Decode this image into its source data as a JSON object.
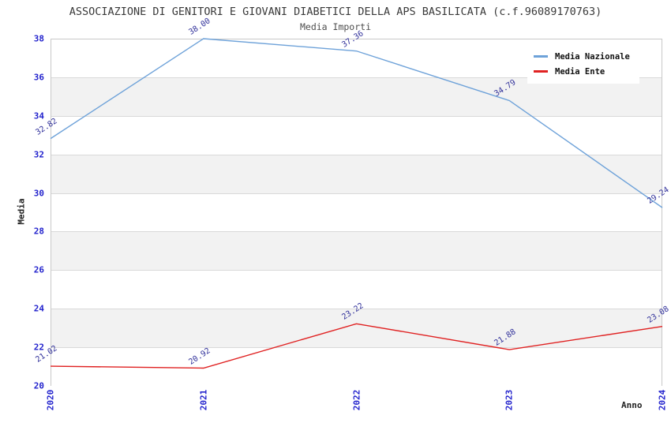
{
  "chart_data": {
    "type": "line",
    "title": "ASSOCIAZIONE DI GENITORI E GIOVANI DIABETICI DELLA APS BASILICATA (c.f.96089170763)",
    "subtitle": "Media Importi",
    "xlabel": "Anno",
    "ylabel": "Media",
    "x": [
      2020,
      2021,
      2022,
      2023,
      2024
    ],
    "ylim": [
      20,
      38
    ],
    "ytick_step": 2,
    "grid": "horizontal-bands",
    "legend_position": "top-right",
    "series": [
      {
        "name": "Media Nazionale",
        "color": "#6ea2d9",
        "values": [
          32.82,
          38.0,
          37.36,
          34.79,
          29.24
        ]
      },
      {
        "name": "Media Ente",
        "color": "#e02222",
        "values": [
          21.02,
          20.92,
          23.22,
          21.88,
          23.08
        ]
      }
    ],
    "colors": {
      "tick_label": "#2323cd",
      "point_label": "#32329b",
      "band_gray": "#f2f2f2",
      "gridline": "#d9d9d9",
      "plot_border": "#c9c9c9"
    }
  }
}
